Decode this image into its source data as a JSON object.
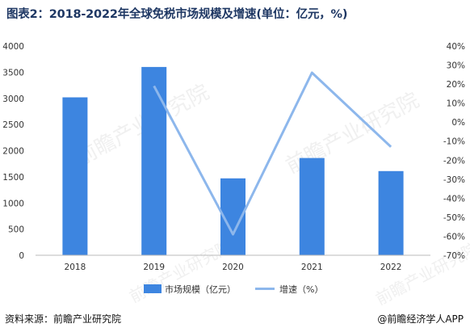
{
  "title": "图表2：2018-2022年全球免税市场规模及增速(单位：亿元，%)",
  "source_label": "资料来源：前瞻产业研究院",
  "credit_label": "@前瞻经济学人APP",
  "watermark": "前瞻产业研究院",
  "colors": {
    "bar": "#3d85e0",
    "line": "#8db7ec",
    "title": "#1f3864"
  },
  "chart_data": {
    "type": "bar",
    "categories": [
      "2018",
      "2019",
      "2020",
      "2021",
      "2022"
    ],
    "series": [
      {
        "name": "市场规模（亿元）",
        "type": "bar",
        "axis": "left",
        "values": [
          3020,
          3600,
          1470,
          1860,
          1610
        ]
      },
      {
        "name": "增速（%）",
        "type": "line",
        "axis": "right",
        "values": [
          null,
          19,
          -59,
          26,
          -13
        ]
      }
    ],
    "y_left": {
      "range": [
        0,
        4000
      ],
      "ticks": [
        "0",
        "500",
        "1000",
        "1500",
        "2000",
        "2500",
        "3000",
        "3500",
        "4000"
      ]
    },
    "y_right": {
      "range": [
        -70,
        40
      ],
      "ticks": [
        "-70%",
        "-60%",
        "-50%",
        "-40%",
        "-30%",
        "-20%",
        "-10%",
        "0%",
        "10%",
        "20%",
        "30%",
        "40%"
      ]
    },
    "grid": false,
    "legend_position": "bottom"
  }
}
